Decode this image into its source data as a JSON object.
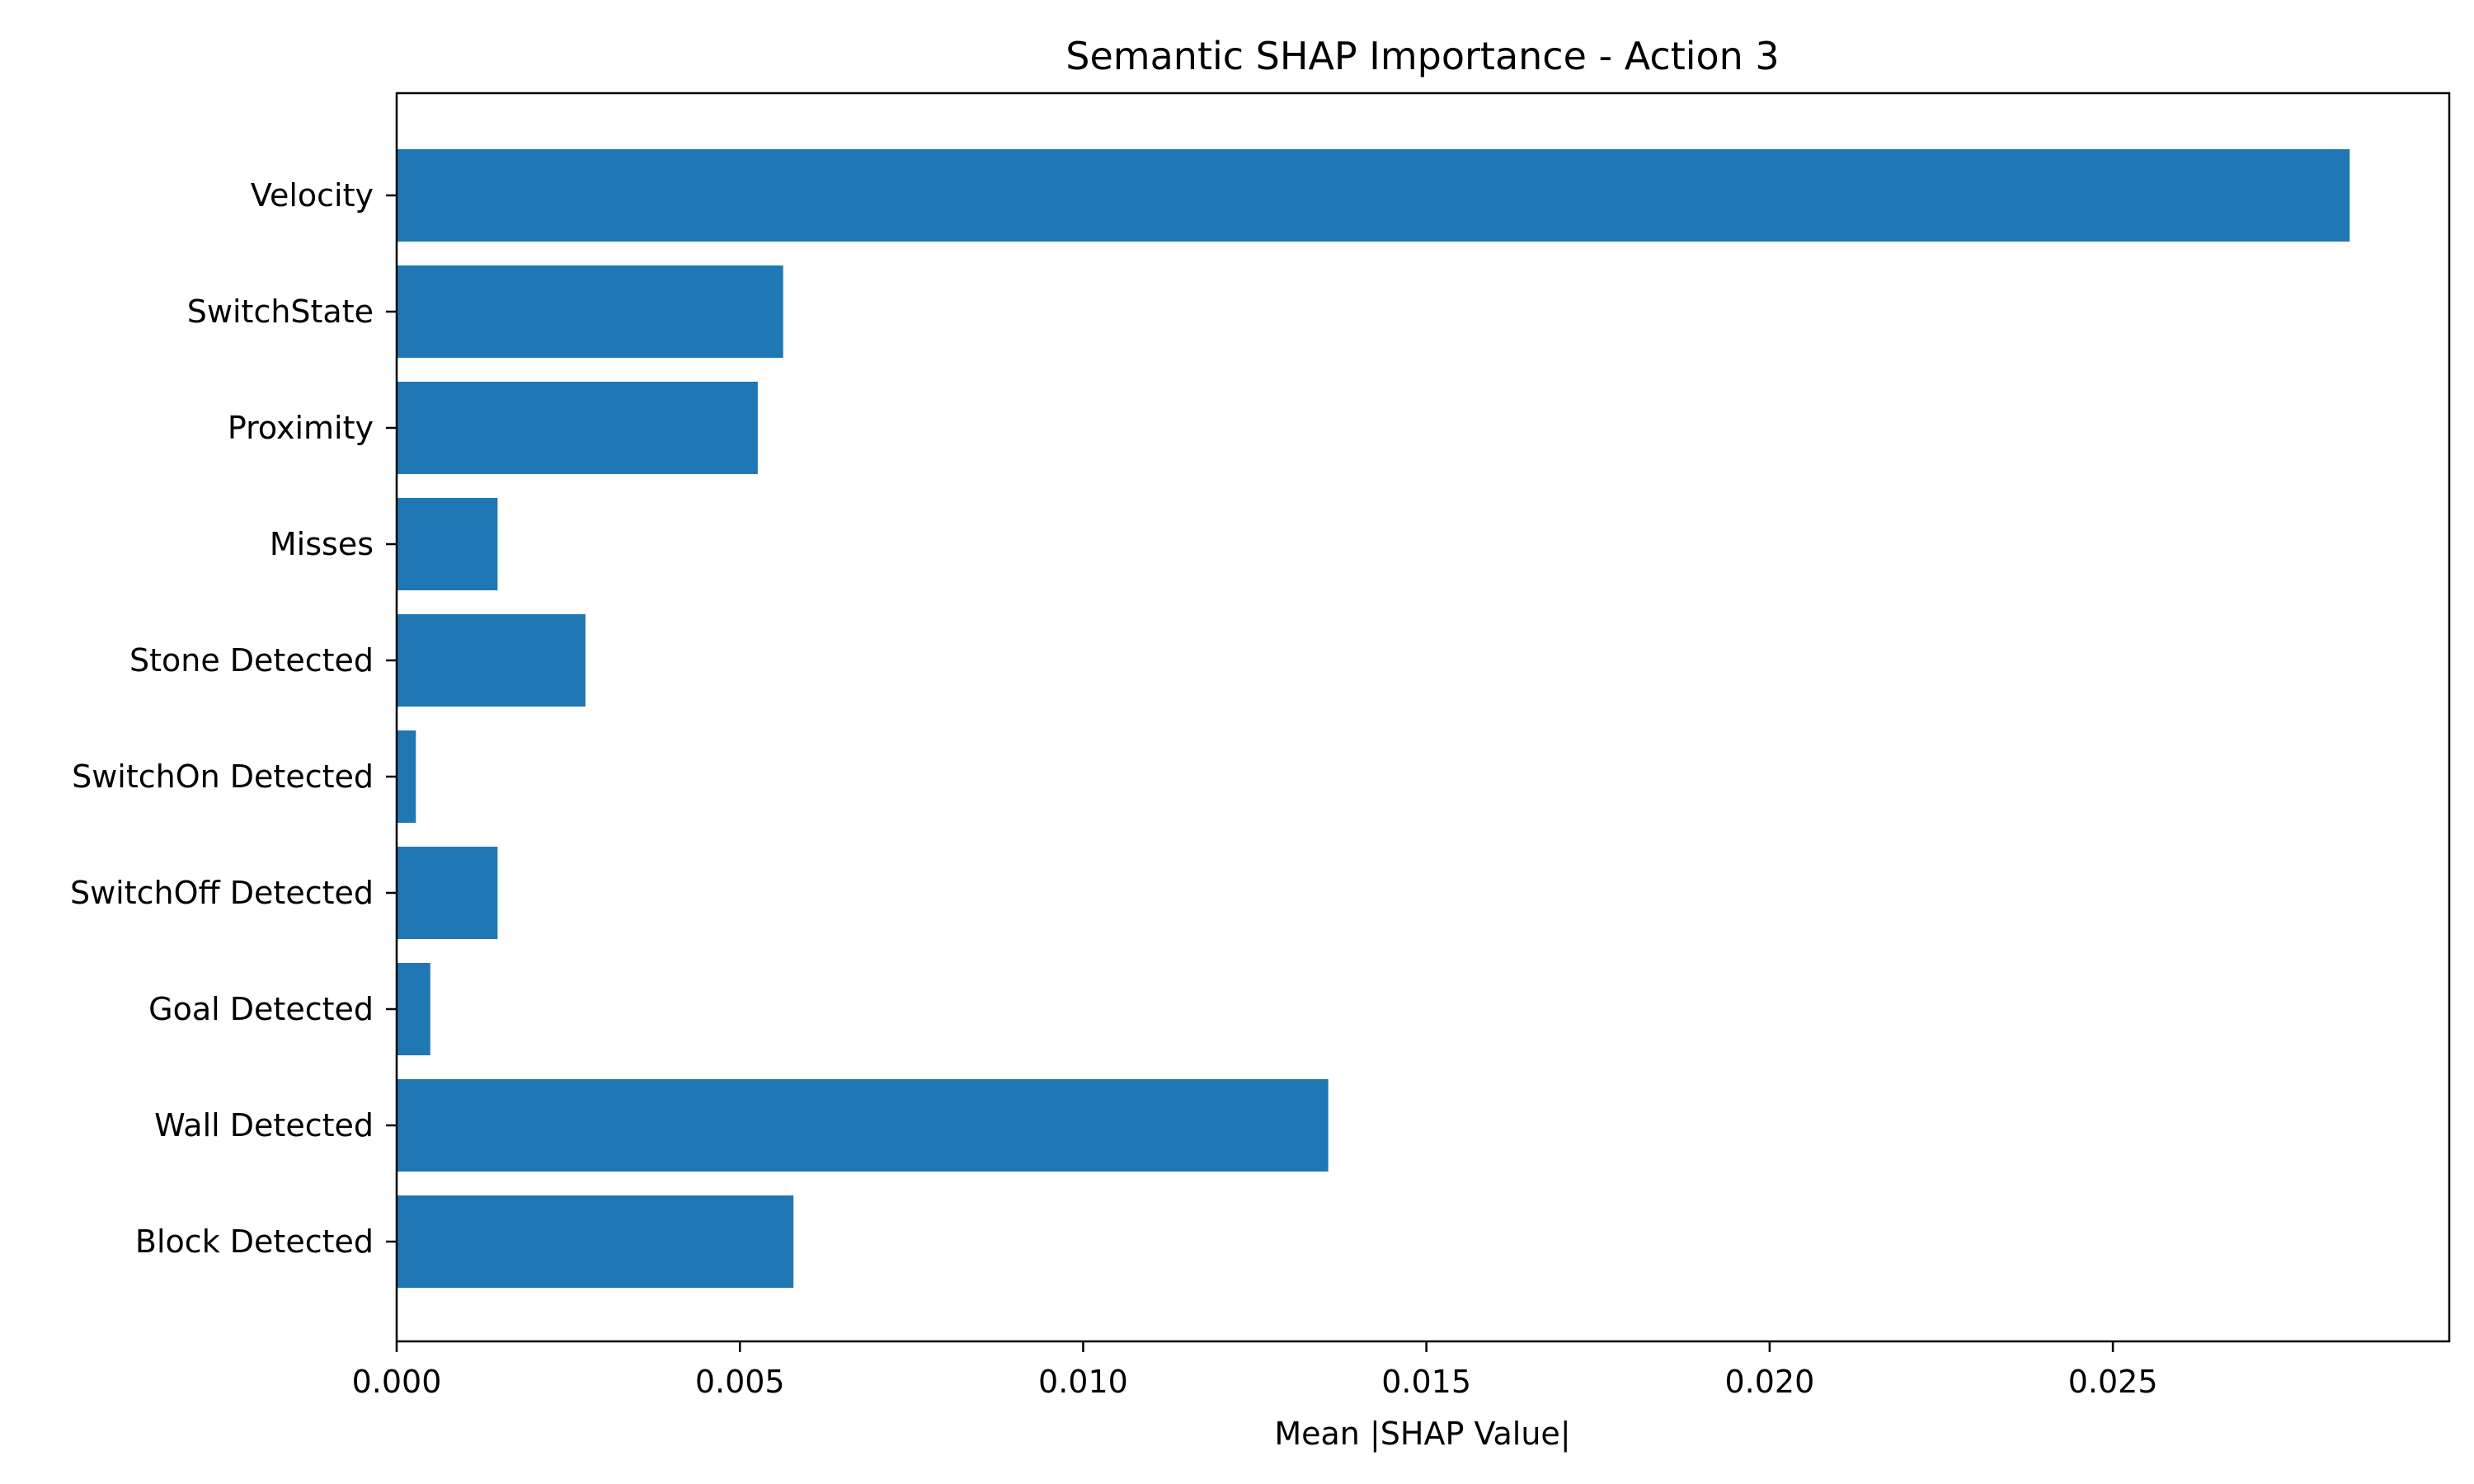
{
  "chart_data": {
    "type": "bar",
    "orientation": "horizontal",
    "title": "Semantic SHAP Importance - Action 3",
    "xlabel": "Mean |SHAP Value|",
    "ylabel": "",
    "categories": [
      "Velocity",
      "SwitchState",
      "Proximity",
      "Misses",
      "Stone Detected",
      "SwitchOn Detected",
      "SwitchOff Detected",
      "Goal Detected",
      "Wall Detected",
      "Block Detected"
    ],
    "values": [
      0.02845,
      0.00563,
      0.00526,
      0.00147,
      0.00275,
      0.00028,
      0.00147,
      0.00049,
      0.01357,
      0.00578
    ],
    "xlim": [
      0,
      0.0299
    ],
    "xticks": [
      "0.000",
      "0.005",
      "0.010",
      "0.015",
      "0.020",
      "0.025"
    ],
    "xtick_values": [
      0,
      0.005,
      0.01,
      0.015,
      0.02,
      0.025
    ],
    "bar_color": "#1f77b4",
    "grid": false,
    "legend": "none"
  }
}
